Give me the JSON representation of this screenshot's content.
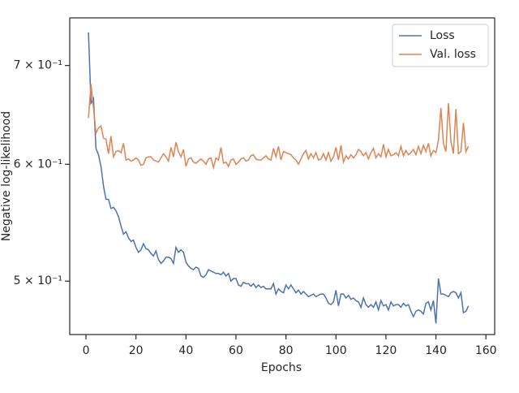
{
  "chart_data": {
    "type": "line",
    "xlabel": "Epochs",
    "ylabel": "Negative log-likelihood",
    "log_y": true,
    "legend": "upper right",
    "x": [
      1,
      2,
      3,
      4,
      5,
      6,
      7,
      8,
      9,
      10,
      11,
      12,
      13,
      14,
      15,
      16,
      17,
      18,
      19,
      20,
      21,
      22,
      23,
      24,
      25,
      26,
      27,
      28,
      29,
      30,
      31,
      32,
      33,
      34,
      35,
      36,
      37,
      38,
      39,
      40,
      41,
      42,
      43,
      44,
      45,
      46,
      47,
      48,
      49,
      50,
      51,
      52,
      53,
      54,
      55,
      56,
      57,
      58,
      59,
      60,
      61,
      62,
      63,
      64,
      65,
      66,
      67,
      68,
      69,
      70,
      71,
      72,
      73,
      74,
      75,
      76,
      77,
      78,
      79,
      80,
      81,
      82,
      83,
      84,
      85,
      86,
      87,
      88,
      89,
      90,
      91,
      92,
      93,
      94,
      95,
      96,
      97,
      98,
      99,
      100,
      101,
      102,
      103,
      104,
      105,
      106,
      107,
      108,
      109,
      110,
      111,
      112,
      113,
      114,
      115,
      116,
      117,
      118,
      119,
      120,
      121,
      122,
      123,
      124,
      125,
      126,
      127,
      128,
      129,
      130,
      131,
      132,
      133,
      134,
      135,
      136,
      137,
      138,
      139,
      140,
      141,
      142,
      143,
      144,
      145,
      146,
      147,
      148,
      149,
      150,
      151,
      152,
      153
    ],
    "series": [
      {
        "name": "Loss",
        "color": "#4c72b0",
        "values": [
          0.737,
          0.66,
          0.665,
          0.615,
          0.609,
          0.598,
          0.58,
          0.568,
          0.568,
          0.56,
          0.561,
          0.558,
          0.553,
          0.545,
          0.538,
          0.54,
          0.535,
          0.532,
          0.533,
          0.527,
          0.523,
          0.525,
          0.53,
          0.526,
          0.525,
          0.522,
          0.52,
          0.524,
          0.517,
          0.514,
          0.516,
          0.519,
          0.519,
          0.518,
          0.514,
          0.527,
          0.523,
          0.525,
          0.523,
          0.515,
          0.512,
          0.51,
          0.509,
          0.511,
          0.51,
          0.504,
          0.503,
          0.505,
          0.509,
          0.508,
          0.507,
          0.506,
          0.506,
          0.505,
          0.507,
          0.504,
          0.506,
          0.5,
          0.502,
          0.502,
          0.497,
          0.496,
          0.499,
          0.498,
          0.498,
          0.496,
          0.498,
          0.495,
          0.497,
          0.495,
          0.496,
          0.494,
          0.494,
          0.494,
          0.498,
          0.49,
          0.494,
          0.492,
          0.491,
          0.497,
          0.494,
          0.497,
          0.494,
          0.491,
          0.493,
          0.49,
          0.492,
          0.49,
          0.488,
          0.489,
          0.49,
          0.488,
          0.489,
          0.49,
          0.49,
          0.487,
          0.483,
          0.482,
          0.484,
          0.493,
          0.481,
          0.49,
          0.49,
          0.487,
          0.489,
          0.486,
          0.487,
          0.485,
          0.484,
          0.48,
          0.487,
          0.482,
          0.48,
          0.482,
          0.48,
          0.484,
          0.478,
          0.485,
          0.481,
          0.482,
          0.478,
          0.484,
          0.481,
          0.482,
          0.482,
          0.48,
          0.483,
          0.481,
          0.482,
          0.477,
          0.473,
          0.477,
          0.478,
          0.477,
          0.475,
          0.483,
          0.484,
          0.478,
          0.485,
          0.468,
          0.502,
          0.49,
          0.49,
          0.489,
          0.488,
          0.491,
          0.492,
          0.491,
          0.487,
          0.491,
          0.476,
          0.477,
          0.481
        ]
      },
      {
        "name": "Val. loss",
        "color": "#dd8452",
        "values": [
          0.645,
          0.68,
          0.655,
          0.63,
          0.635,
          0.637,
          0.625,
          0.624,
          0.61,
          0.627,
          0.607,
          0.612,
          0.613,
          0.611,
          0.62,
          0.604,
          0.605,
          0.603,
          0.604,
          0.606,
          0.604,
          0.599,
          0.6,
          0.606,
          0.607,
          0.607,
          0.604,
          0.603,
          0.602,
          0.606,
          0.61,
          0.607,
          0.603,
          0.616,
          0.607,
          0.621,
          0.612,
          0.607,
          0.614,
          0.598,
          0.605,
          0.606,
          0.602,
          0.601,
          0.603,
          0.605,
          0.603,
          0.6,
          0.605,
          0.606,
          0.597,
          0.606,
          0.604,
          0.616,
          0.601,
          0.602,
          0.598,
          0.604,
          0.605,
          0.6,
          0.602,
          0.605,
          0.606,
          0.603,
          0.604,
          0.608,
          0.609,
          0.605,
          0.604,
          0.604,
          0.606,
          0.608,
          0.605,
          0.604,
          0.615,
          0.607,
          0.617,
          0.604,
          0.612,
          0.611,
          0.61,
          0.609,
          0.606,
          0.604,
          0.6,
          0.605,
          0.61,
          0.613,
          0.605,
          0.61,
          0.606,
          0.611,
          0.604,
          0.605,
          0.61,
          0.604,
          0.611,
          0.603,
          0.607,
          0.616,
          0.604,
          0.618,
          0.602,
          0.608,
          0.605,
          0.609,
          0.606,
          0.609,
          0.614,
          0.612,
          0.608,
          0.611,
          0.605,
          0.611,
          0.615,
          0.606,
          0.61,
          0.607,
          0.619,
          0.607,
          0.614,
          0.608,
          0.609,
          0.611,
          0.608,
          0.617,
          0.608,
          0.613,
          0.609,
          0.611,
          0.614,
          0.609,
          0.617,
          0.61,
          0.618,
          0.612,
          0.62,
          0.608,
          0.613,
          0.611,
          0.623,
          0.655,
          0.62,
          0.612,
          0.66,
          0.622,
          0.61,
          0.654,
          0.61,
          0.612,
          0.64,
          0.612,
          0.617
        ]
      }
    ],
    "xlim": [
      -6.5,
      163.5
    ],
    "xticks": [
      0,
      20,
      40,
      60,
      80,
      100,
      120,
      140,
      160
    ],
    "ylim": [
      0.46,
      0.754
    ],
    "yticks": [
      {
        "value": 0.5,
        "label": "5 × 10⁻¹"
      },
      {
        "value": 0.6,
        "label": "6 × 10⁻¹"
      },
      {
        "value": 0.7,
        "label": "7 × 10⁻¹"
      }
    ]
  }
}
